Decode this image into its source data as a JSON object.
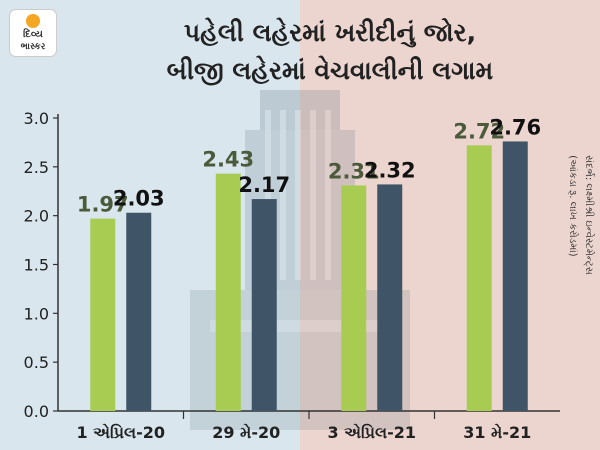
{
  "branding": {
    "logo_line1": "દિવ્ય",
    "logo_line2": "ભાસ્કર"
  },
  "title_line1": "પહેલી લહેરમાં ખરીદીનું જોર,",
  "title_line2": "બીજી લહેરમાં વેચવાલીની લગામ",
  "source_line1": "સંદર્ભ: લક્ષ્મીશ્રી ઇન્વેસ્ટમેન્ટ્સ",
  "source_line2": "(આંકડા રૂ. લાખ કરોડમાં)",
  "colors": {
    "series1": "#a8cc52",
    "series2": "#3f5567",
    "label1": "#4a5a3a",
    "label2": "#111111"
  },
  "chart_data": {
    "type": "bar",
    "title": "પહેલી લહેરમાં ખરીદીનું જોર, બીજી લહેરમાં વેચવાલીની લગામ",
    "categories": [
      "1 એપ્રિલ-20",
      "29 મે-20",
      "3 એપ્રિલ-21",
      "31 મે-21"
    ],
    "series": [
      {
        "values": [
          1.97,
          2.43,
          2.31,
          2.72
        ]
      },
      {
        "values": [
          2.03,
          2.17,
          2.32,
          2.76
        ]
      }
    ],
    "yticks": [
      "0.0",
      "0.5",
      "1.0",
      "1.5",
      "2.0",
      "2.5",
      "3.0"
    ],
    "ylim": [
      0,
      3.0
    ],
    "xlabel": "",
    "ylabel": "",
    "grid": false
  }
}
